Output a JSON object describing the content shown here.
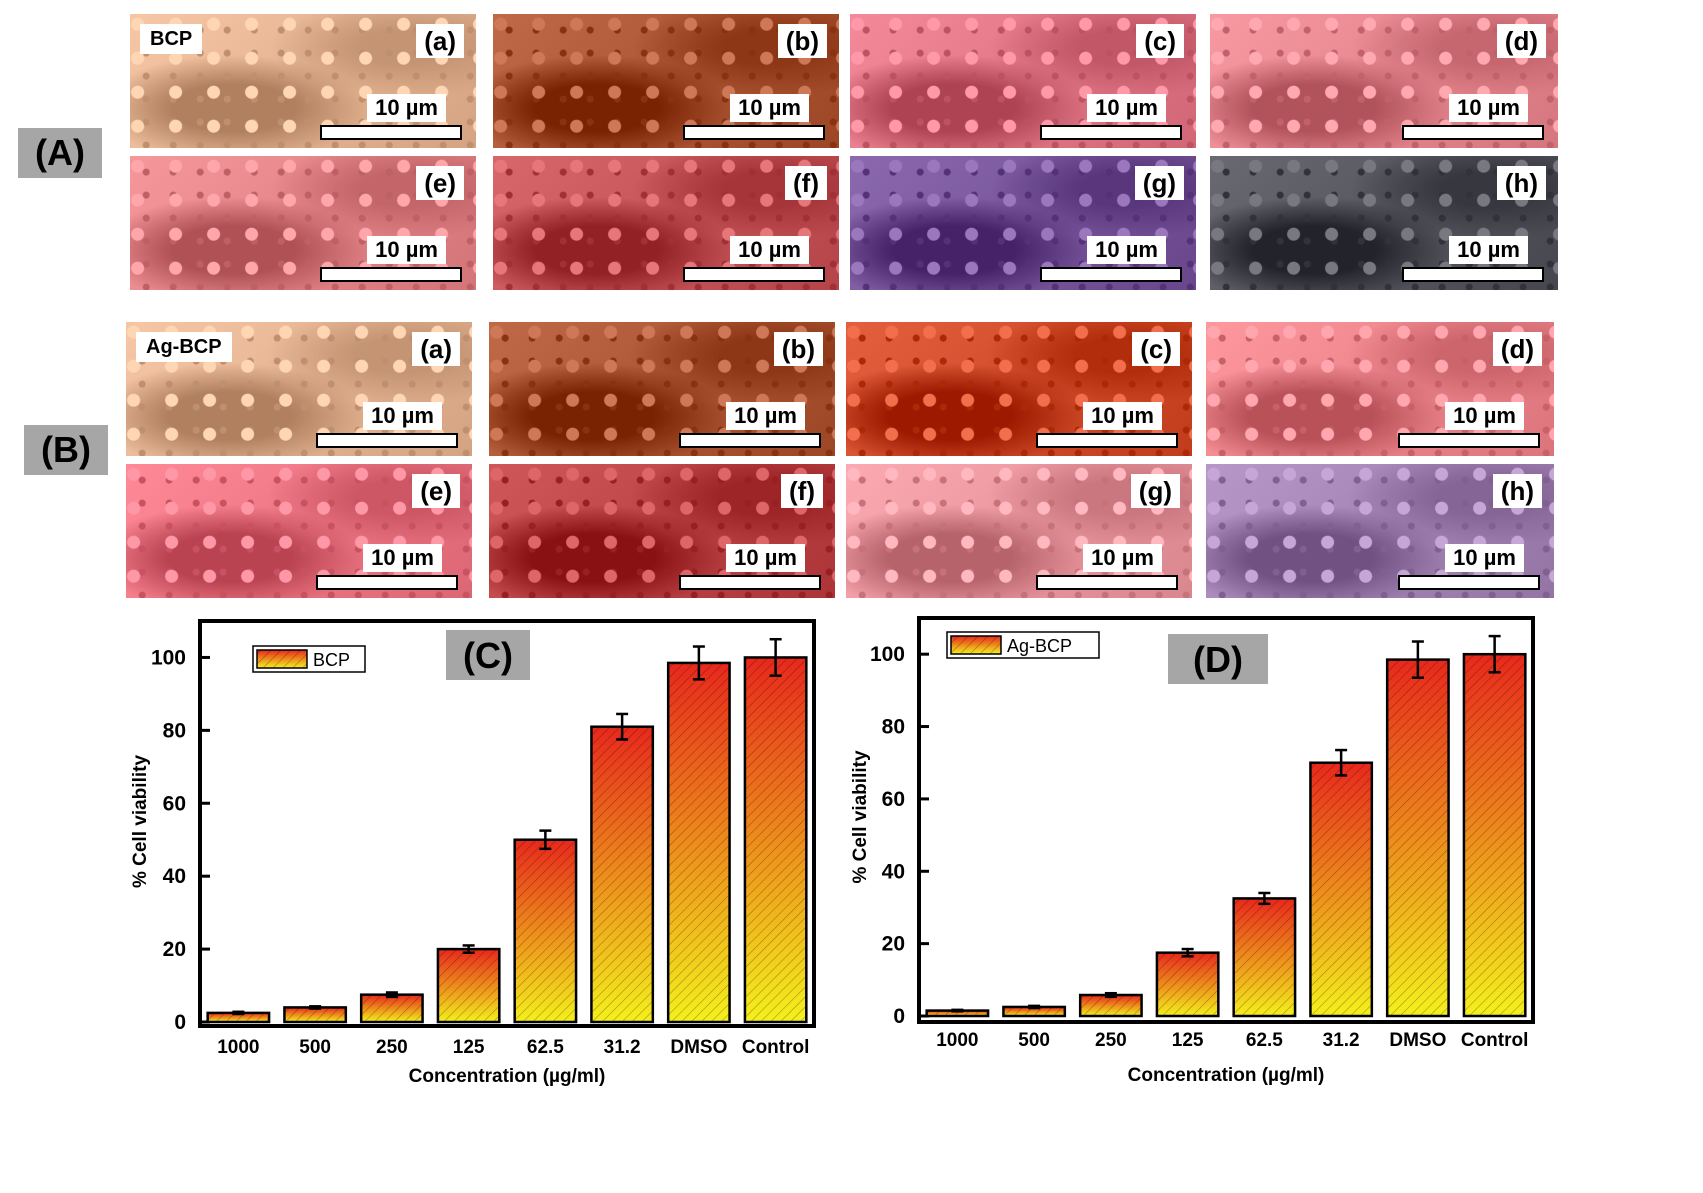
{
  "panels": {
    "A": {
      "tag": "(A)",
      "name": "BCP",
      "labels": [
        "(a)",
        "(b)",
        "(c)",
        "(d)",
        "(e)",
        "(f)",
        "(g)",
        "(h)"
      ],
      "scalebar": "10 µm",
      "tints": [
        "#e8b896",
        "#b05a3a",
        "#e47a8a",
        "#e98a92",
        "#e6888c",
        "#c8585c",
        "#7d5aa0",
        "#5a5a62"
      ]
    },
    "B": {
      "tag": "(B)",
      "name": "Ag-BCP",
      "labels": [
        "(a)",
        "(b)",
        "(c)",
        "(d)",
        "(e)",
        "(f)",
        "(g)",
        "(h)"
      ],
      "scalebar": "10 µm",
      "tints": [
        "#e8b896",
        "#b05a3a",
        "#d4502e",
        "#f08890",
        "#f07a88",
        "#c0484a",
        "#ee9aa2",
        "#a888b8"
      ]
    }
  },
  "chart_data": [
    {
      "type": "bar",
      "panel_tag": "(C)",
      "legend": "BCP",
      "categories": [
        "1000",
        "500",
        "250",
        "125",
        "62.5",
        "31.2",
        "DMSO",
        "Control"
      ],
      "values": [
        2.5,
        4,
        7.5,
        20,
        50,
        81,
        98.5,
        100
      ],
      "errors": [
        0.3,
        0.3,
        0.6,
        1,
        2.5,
        3.5,
        4.5,
        5
      ],
      "xlabel": "Concentration (µg/ml)",
      "ylabel": "% Cell viability",
      "ylim": [
        0,
        110
      ],
      "yticks": [
        0,
        20,
        40,
        60,
        80,
        100
      ],
      "colors": {
        "top": "#e8281c",
        "bottom": "#f4f01c"
      }
    },
    {
      "type": "bar",
      "panel_tag": "(D)",
      "legend": "Ag-BCP",
      "categories": [
        "1000",
        "500",
        "250",
        "125",
        "62.5",
        "31.2",
        "DMSO",
        "Control"
      ],
      "values": [
        1.5,
        2.5,
        5.8,
        17.5,
        32.5,
        70,
        98.5,
        100
      ],
      "errors": [
        0.2,
        0.3,
        0.5,
        1,
        1.5,
        3.5,
        5,
        5
      ],
      "xlabel": "Concentration (µg/ml)",
      "ylabel": "% Cell viability",
      "ylim": [
        0,
        110
      ],
      "yticks": [
        0,
        20,
        40,
        60,
        80,
        100
      ],
      "colors": {
        "top": "#e8281c",
        "bottom": "#f4f01c"
      }
    }
  ]
}
